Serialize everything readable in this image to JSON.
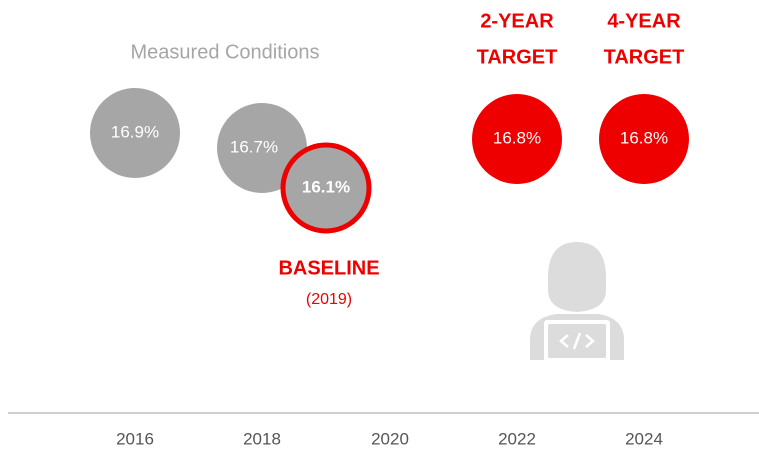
{
  "title": "Measured Conditions",
  "measured": [
    {
      "label": "16.9%"
    },
    {
      "label": "16.7%"
    }
  ],
  "baseline": {
    "label": "16.1%",
    "title": "BASELINE",
    "year": "(2019)"
  },
  "targets": [
    {
      "line1": "2-YEAR",
      "line2": "TARGET",
      "label": "16.8%"
    },
    {
      "line1": "4-YEAR",
      "line2": "TARGET",
      "label": "16.8%"
    }
  ],
  "axis": {
    "ticks": [
      "2016",
      "2018",
      "2020",
      "2022",
      "2024"
    ]
  }
}
